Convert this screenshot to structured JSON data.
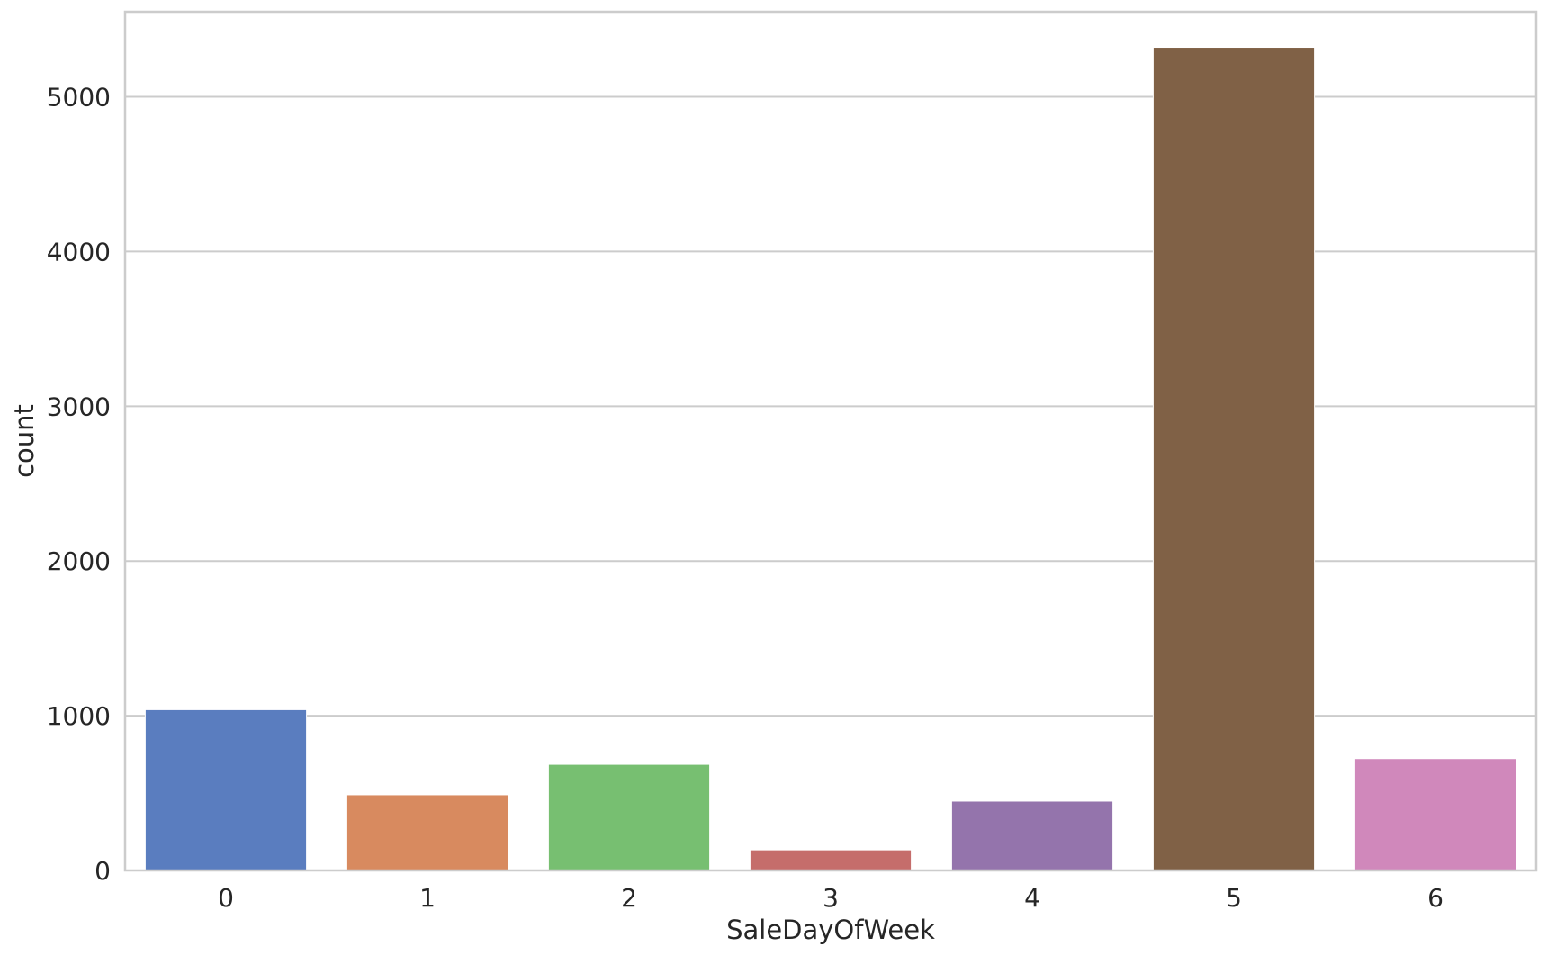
{
  "chart_data": {
    "type": "bar",
    "title": "",
    "xlabel": "SaleDayOfWeek",
    "ylabel": "count",
    "categories": [
      "0",
      "1",
      "2",
      "3",
      "4",
      "5",
      "6"
    ],
    "values": [
      1039,
      489,
      686,
      133,
      448,
      5320,
      723
    ],
    "colors": [
      "#5a7dbf",
      "#d88a5f",
      "#77bf71",
      "#c56d6b",
      "#9474ac",
      "#806146",
      "#d088bb"
    ],
    "ylim": [
      0,
      5550
    ],
    "yticks": [
      0,
      1000,
      2000,
      3000,
      4000,
      5000
    ],
    "grid": "horizontal",
    "legend": "none"
  },
  "style": {
    "grid_color": "#cccccc",
    "spine_color": "#cccccc",
    "background": "#ffffff"
  }
}
